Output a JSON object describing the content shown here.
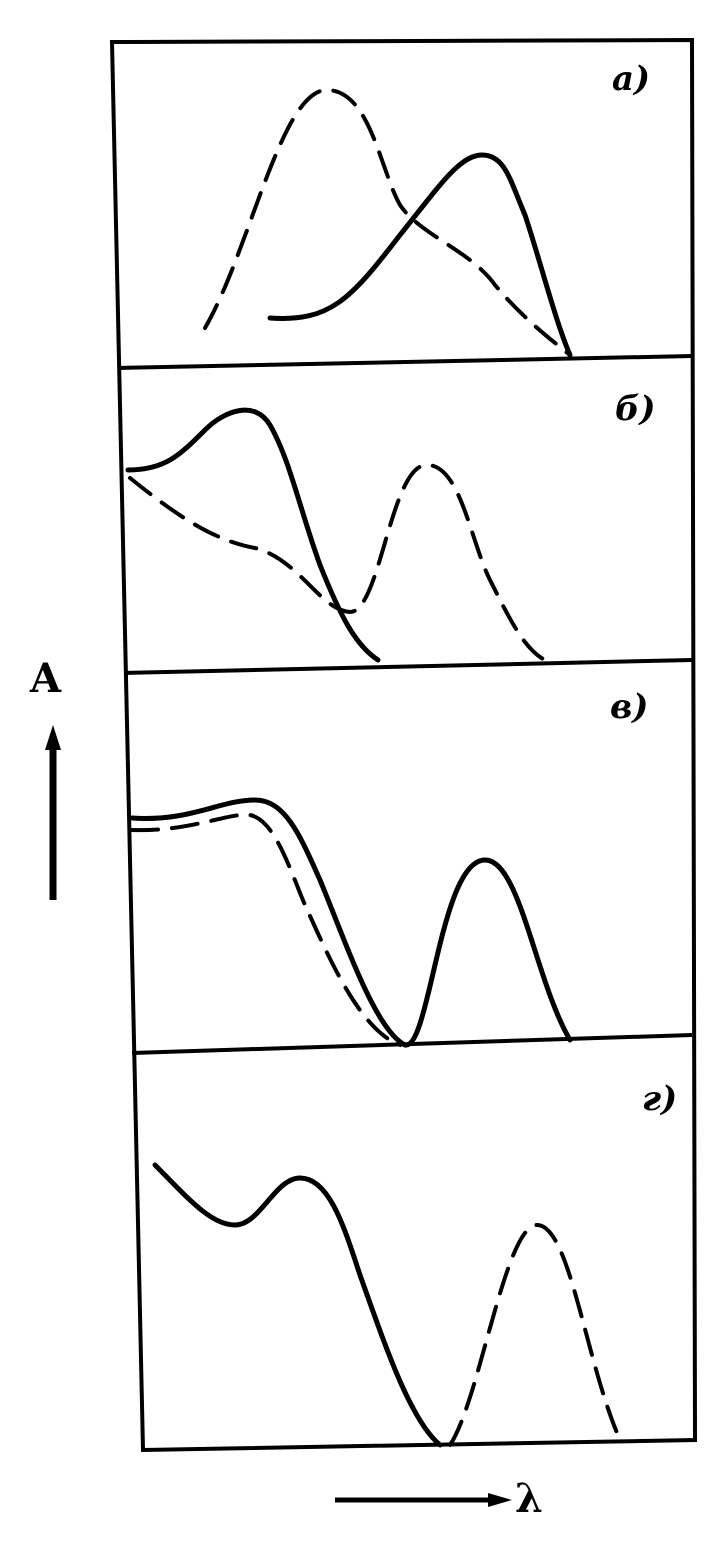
{
  "panels": [
    {
      "label": "а)"
    },
    {
      "label": "б)"
    },
    {
      "label": "в)"
    },
    {
      "label": "г)"
    }
  ],
  "axes": {
    "y_label": "A",
    "x_label": "λ"
  }
}
